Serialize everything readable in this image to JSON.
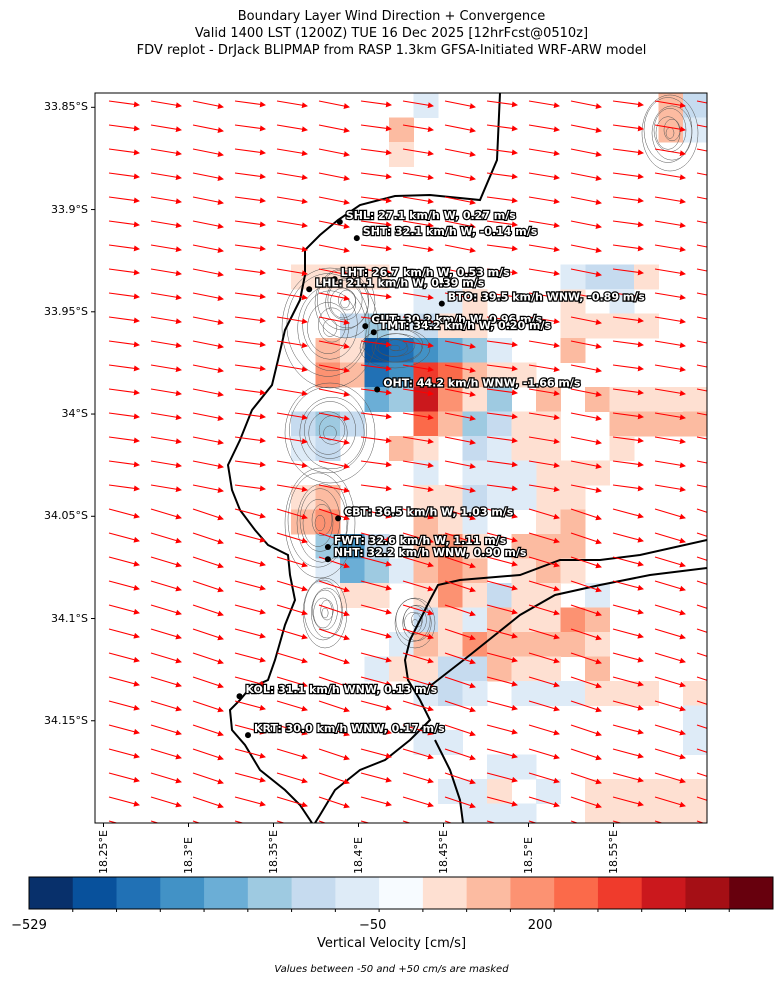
{
  "title": {
    "line1": "Boundary Layer Wind Direction + Convergence",
    "line2": "Valid 1400 LST (1200Z) TUE 16 Dec 2025 [12hrFcst@0510z]",
    "line3": "FDV replot - DrJack BLIPMAP from RASP 1.3km GFSA-Initiated WRF-ARW model"
  },
  "axes": {
    "lat_labels": [
      "33.85°S",
      "33.9°S",
      "33.95°S",
      "34°S",
      "34.05°S",
      "34.1°S",
      "34.15°S"
    ],
    "lat_values": [
      -33.85,
      -33.9,
      -33.95,
      -34.0,
      -34.05,
      -34.1,
      -34.15
    ],
    "lon_labels": [
      "18.25°E",
      "18.3°E",
      "18.35°E",
      "18.4°E",
      "18.45°E",
      "18.5°E",
      "18.55°E"
    ],
    "lon_values": [
      18.25,
      18.3,
      18.35,
      18.4,
      18.45,
      18.5,
      18.55
    ],
    "lon_range": [
      18.245,
      18.605
    ],
    "lat_range": [
      -33.843,
      -34.2
    ]
  },
  "stations": [
    {
      "label": "SHL: 27.1 km/h W, 0.27 m/s",
      "lon": 18.389,
      "lat": -33.906
    },
    {
      "label": "SHT: 32.1 km/h W, -0.14 m/s",
      "lon": 18.399,
      "lat": -33.914
    },
    {
      "label": "LHT: 26.7 km/h W, 0.53 m/s",
      "lon": 18.386,
      "lat": -33.934
    },
    {
      "label": "LHL: 21.1 km/h W, 0.39 m/s",
      "lon": 18.371,
      "lat": -33.939
    },
    {
      "label": "BTO: 39.5 km/h WNW, -0.89 m/s",
      "lon": 18.449,
      "lat": -33.946
    },
    {
      "label": "GUT: 30.2 km/h W, 0.96 m/s",
      "lon": 18.404,
      "lat": -33.957
    },
    {
      "label": "TMT: 34.2 km/h W, 0.20 m/s",
      "lon": 18.409,
      "lat": -33.96
    },
    {
      "label": "OHT: 44.2 km/h WNW, -1.66 m/s",
      "lon": 18.411,
      "lat": -33.988
    },
    {
      "label": "CBT: 36.5 km/h W, 1.03 m/s",
      "lon": 18.388,
      "lat": -34.051
    },
    {
      "label": "FWT: 32.6 km/h W, 1.11 m/s",
      "lon": 18.382,
      "lat": -34.065
    },
    {
      "label": "NHT: 32.2 km/h WNW, 0.90 m/s",
      "lon": 18.382,
      "lat": -34.071
    },
    {
      "label": "KOL: 31.1 km/h WNW, 0.13 m/s",
      "lon": 18.33,
      "lat": -34.138
    },
    {
      "label": "KRT: 30.0 km/h WNW, 0.17 m/s",
      "lon": 18.335,
      "lat": -34.157
    }
  ],
  "colorbar": {
    "label": "Vertical Velocity [cm/s]",
    "tick_labels": [
      "−529",
      "−50",
      "200"
    ],
    "tick_positions": [
      0.0,
      0.462,
      0.687
    ],
    "colors": [
      "#08306b",
      "#08519c",
      "#2171b5",
      "#4292c6",
      "#6baed6",
      "#9ecae1",
      "#c6dbef",
      "#deebf7",
      "#f7fbff",
      "#fee0d2",
      "#fcbba1",
      "#fc9272",
      "#fb6a4a",
      "#ef3b2c",
      "#cb181d",
      "#a50f15",
      "#67000d"
    ]
  },
  "note": "Values between -50 and +50 cm/s are masked",
  "wind_color": "#ff0000"
}
